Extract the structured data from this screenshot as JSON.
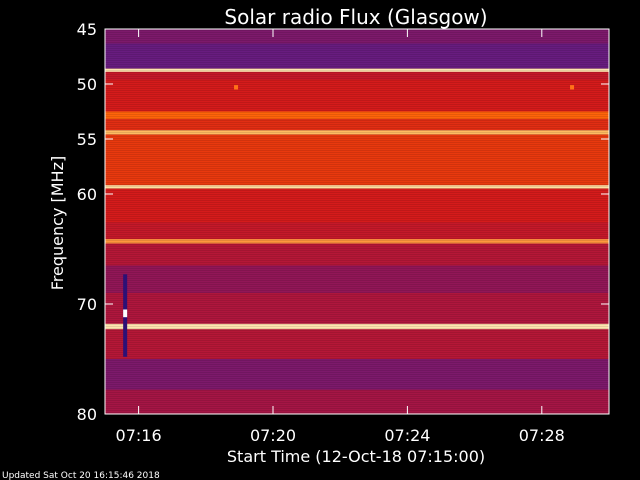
{
  "chart_data": {
    "type": "heatmap",
    "title": "Solar radio Flux (Glasgow)",
    "xlabel": "Start Time (12-Oct-18 07:15:00)",
    "ylabel": "Frequency [MHz]",
    "footer": "Updated Sat Oct 20 16:15:46 2018",
    "x_tick_labels": [
      "07:16",
      "07:20",
      "07:24",
      "07:28"
    ],
    "x_ticks_minutes": [
      1,
      5,
      9,
      13
    ],
    "xlim_minutes": [
      0,
      15
    ],
    "y_tick_labels": [
      "45",
      "50",
      "55",
      "60",
      "70",
      "80"
    ],
    "y_ticks": [
      45,
      50,
      55,
      60,
      70,
      80
    ],
    "ylim": [
      45,
      80
    ],
    "y_axis_direction": "inverted",
    "colormap": [
      "#1a0a6b",
      "#5a1e8c",
      "#a0144a",
      "#d51b1b",
      "#ff5a00",
      "#ffd37a",
      "#ffffff"
    ],
    "bands": [
      {
        "from": 45.0,
        "to": 46.3,
        "level": 0.25
      },
      {
        "from": 46.3,
        "to": 48.6,
        "level": 0.2
      },
      {
        "from": 48.6,
        "to": 48.9,
        "level": 0.9
      },
      {
        "from": 48.9,
        "to": 49.6,
        "level": 0.45
      },
      {
        "from": 49.6,
        "to": 52.5,
        "level": 0.5
      },
      {
        "from": 52.5,
        "to": 53.2,
        "level": 0.68
      },
      {
        "from": 53.2,
        "to": 54.2,
        "level": 0.55
      },
      {
        "from": 54.2,
        "to": 54.6,
        "level": 0.8
      },
      {
        "from": 54.6,
        "to": 59.2,
        "level": 0.58
      },
      {
        "from": 59.2,
        "to": 59.5,
        "level": 0.88
      },
      {
        "from": 59.5,
        "to": 62.6,
        "level": 0.5
      },
      {
        "from": 62.6,
        "to": 64.1,
        "level": 0.45
      },
      {
        "from": 64.1,
        "to": 64.5,
        "level": 0.75
      },
      {
        "from": 64.5,
        "to": 66.5,
        "level": 0.4
      },
      {
        "from": 66.5,
        "to": 69.0,
        "level": 0.3
      },
      {
        "from": 69.0,
        "to": 71.8,
        "level": 0.38
      },
      {
        "from": 71.8,
        "to": 72.3,
        "level": 0.9
      },
      {
        "from": 72.3,
        "to": 75.0,
        "level": 0.4
      },
      {
        "from": 75.0,
        "to": 77.8,
        "level": 0.25
      },
      {
        "from": 77.8,
        "to": 80.0,
        "level": 0.35
      }
    ],
    "spikes": [
      {
        "freq_from": 67.3,
        "freq_to": 74.8,
        "minute": 0.6,
        "level": 0.05
      },
      {
        "freq_from": 70.5,
        "freq_to": 71.2,
        "minute": 0.6,
        "level": 1.0
      },
      {
        "freq_from": 50.1,
        "freq_to": 50.5,
        "minute": 3.9,
        "level": 0.7
      },
      {
        "freq_from": 50.1,
        "freq_to": 50.5,
        "minute": 13.9,
        "level": 0.7
      }
    ]
  }
}
